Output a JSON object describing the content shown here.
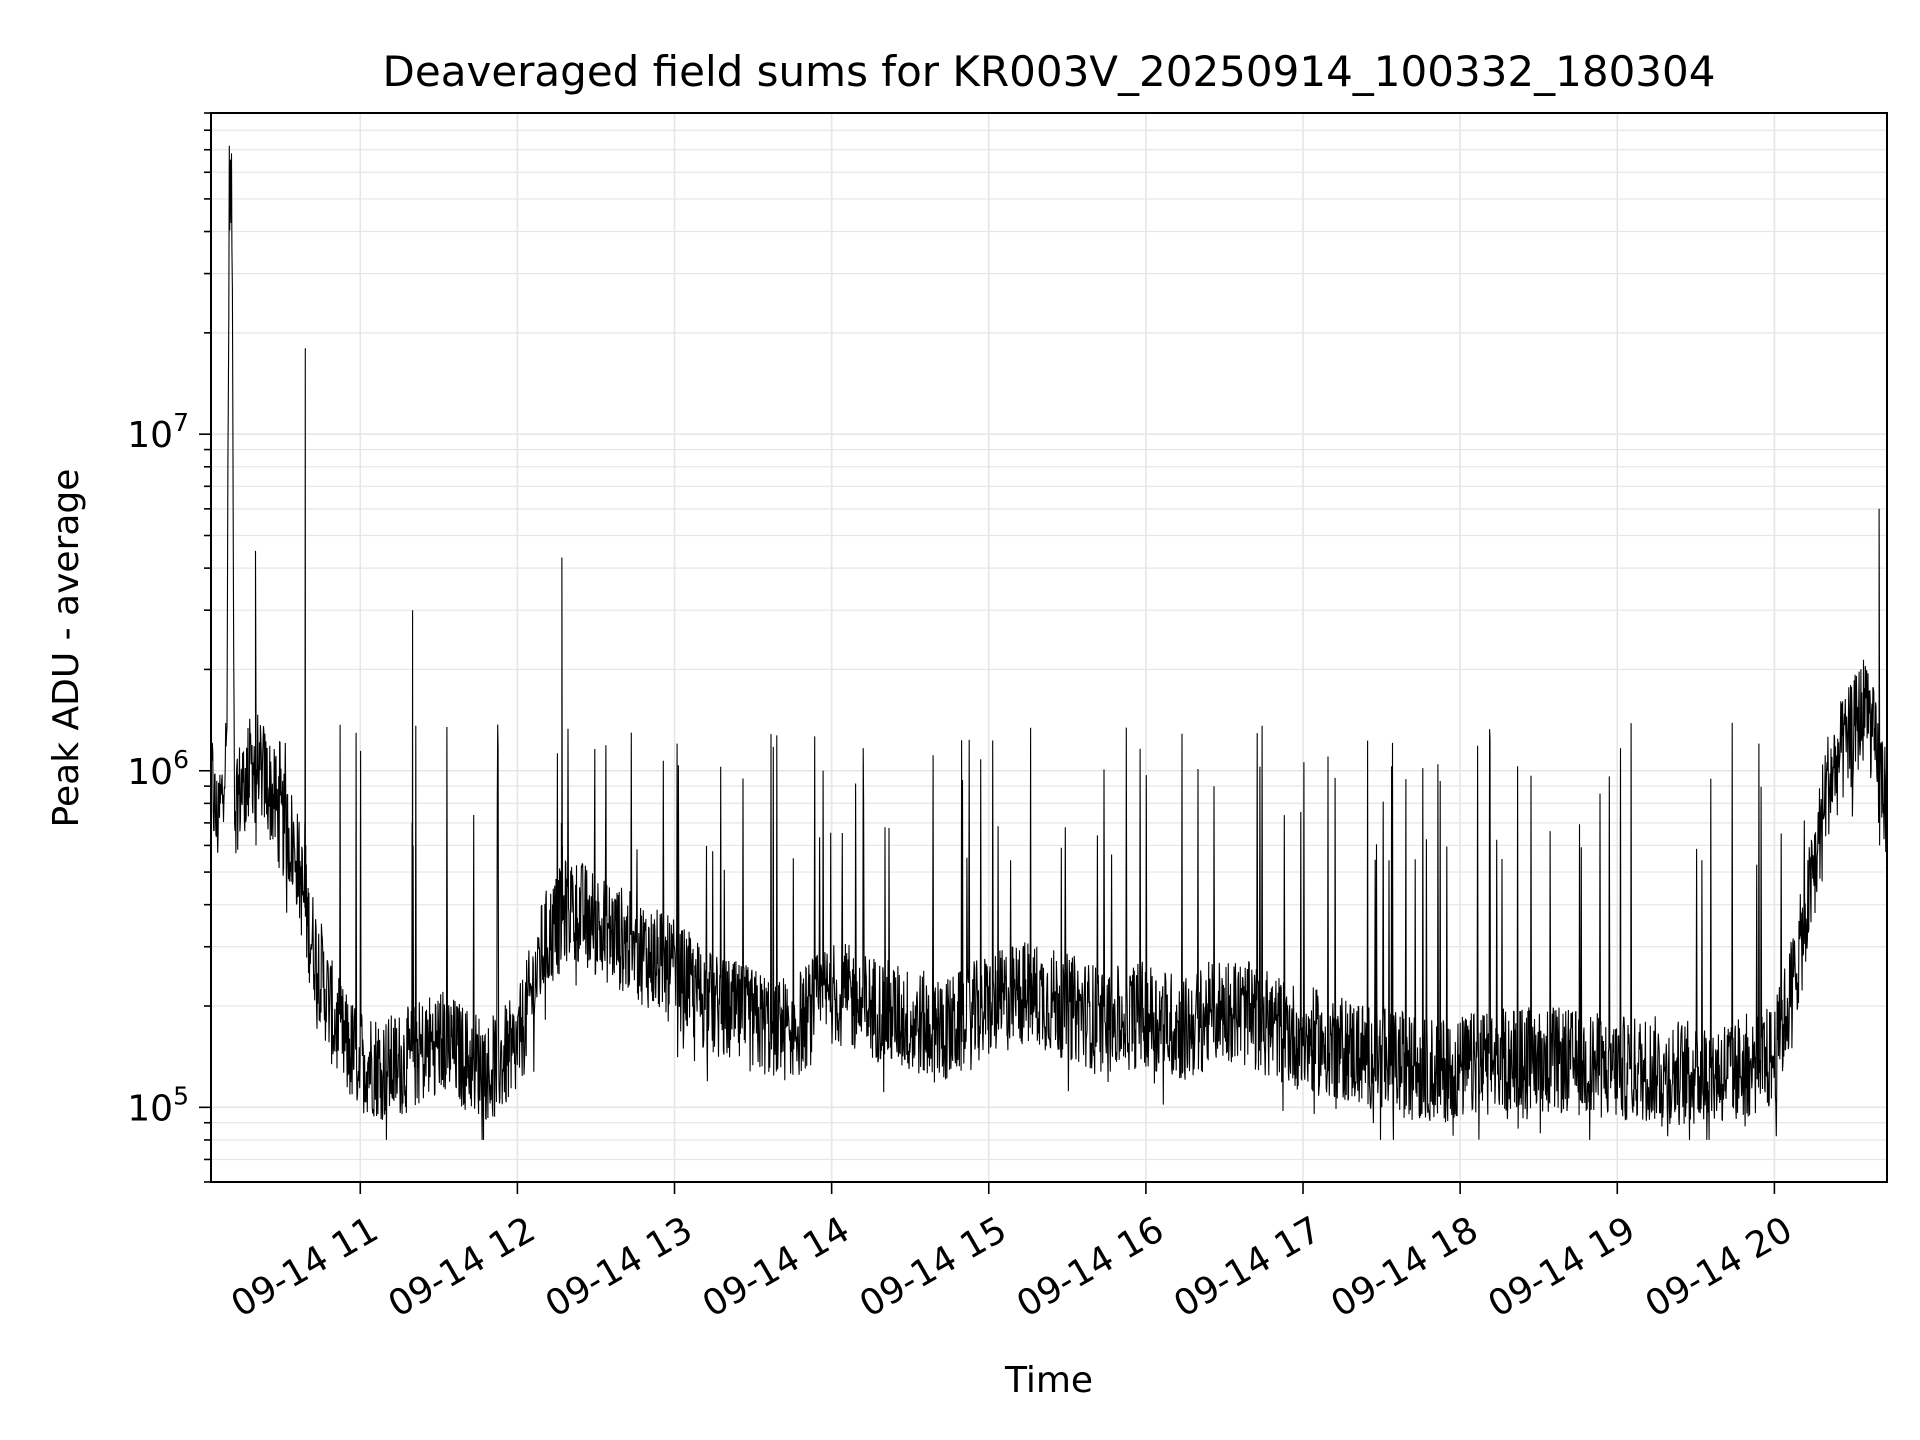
{
  "chart_data": {
    "type": "line",
    "title": "Deaveraged field sums for KR003V_20250914_100332_180304",
    "xlabel": "Time",
    "ylabel": "Peak ADU - average",
    "yscale": "log",
    "ylim": [
      60000,
      90000000
    ],
    "xlim": [
      "2025-09-14 10:03",
      "2025-09-14 20:43"
    ],
    "grid": true,
    "line_color": "#000000",
    "x_tick_labels": [
      "09-14 11",
      "09-14 12",
      "09-14 13",
      "09-14 14",
      "09-14 15",
      "09-14 16",
      "09-14 17",
      "09-14 18",
      "09-14 19",
      "09-14 20"
    ],
    "y_tick_labels": [
      {
        "base": "10",
        "exp": "5",
        "value": 100000
      },
      {
        "base": "10",
        "exp": "6",
        "value": 1000000
      },
      {
        "base": "10",
        "exp": "7",
        "value": 10000000
      }
    ],
    "series": [
      {
        "x": [
          "10:03",
          "10:05",
          "10:07",
          "10:09",
          "10:10",
          "10:11",
          "10:12",
          "10:15",
          "10:20",
          "10:25",
          "10:30",
          "10:35",
          "10:40",
          "10:45",
          "10:50",
          "10:55",
          "11:00",
          "11:10",
          "11:20",
          "11:30",
          "11:40",
          "11:50",
          "12:00",
          "12:10",
          "12:20",
          "12:30",
          "12:45",
          "13:00",
          "13:15",
          "13:30",
          "13:45",
          "14:00",
          "14:15",
          "14:30",
          "14:45",
          "15:00",
          "15:15",
          "15:30",
          "15:45",
          "16:00",
          "16:15",
          "16:30",
          "16:45",
          "17:00",
          "17:15",
          "17:30",
          "17:45",
          "18:00",
          "18:15",
          "18:30",
          "18:45",
          "19:00",
          "19:15",
          "19:30",
          "19:45",
          "20:00",
          "20:05",
          "20:10",
          "20:15",
          "20:20",
          "20:25",
          "20:30",
          "20:35",
          "20:40",
          "20:43"
        ],
        "y": [
          1000000,
          700000,
          800000,
          1200000,
          60000000,
          45000000,
          800000,
          900000,
          1100000,
          900000,
          700000,
          600000,
          350000,
          250000,
          180000,
          150000,
          140000,
          130000,
          140000,
          160000,
          140000,
          130000,
          150000,
          300000,
          400000,
          350000,
          300000,
          250000,
          200000,
          180000,
          170000,
          220000,
          200000,
          180000,
          170000,
          200000,
          220000,
          200000,
          180000,
          190000,
          170000,
          200000,
          180000,
          160000,
          150000,
          140000,
          130000,
          130000,
          140000,
          140000,
          135000,
          130000,
          130000,
          125000,
          130000,
          140000,
          200000,
          300000,
          500000,
          900000,
          1100000,
          1300000,
          1600000,
          1000000,
          800000
        ]
      }
    ],
    "annotations": [
      {
        "label": "spike",
        "x": "10:39",
        "y": 18000000
      },
      {
        "label": "spike",
        "x": "10:20",
        "y": 4500000
      },
      {
        "label": "spike",
        "x": "11:20",
        "y": 3000000
      },
      {
        "label": "spike",
        "x": "12:17",
        "y": 4300000
      },
      {
        "label": "spike",
        "x": "20:40",
        "y": 6000000
      }
    ]
  }
}
